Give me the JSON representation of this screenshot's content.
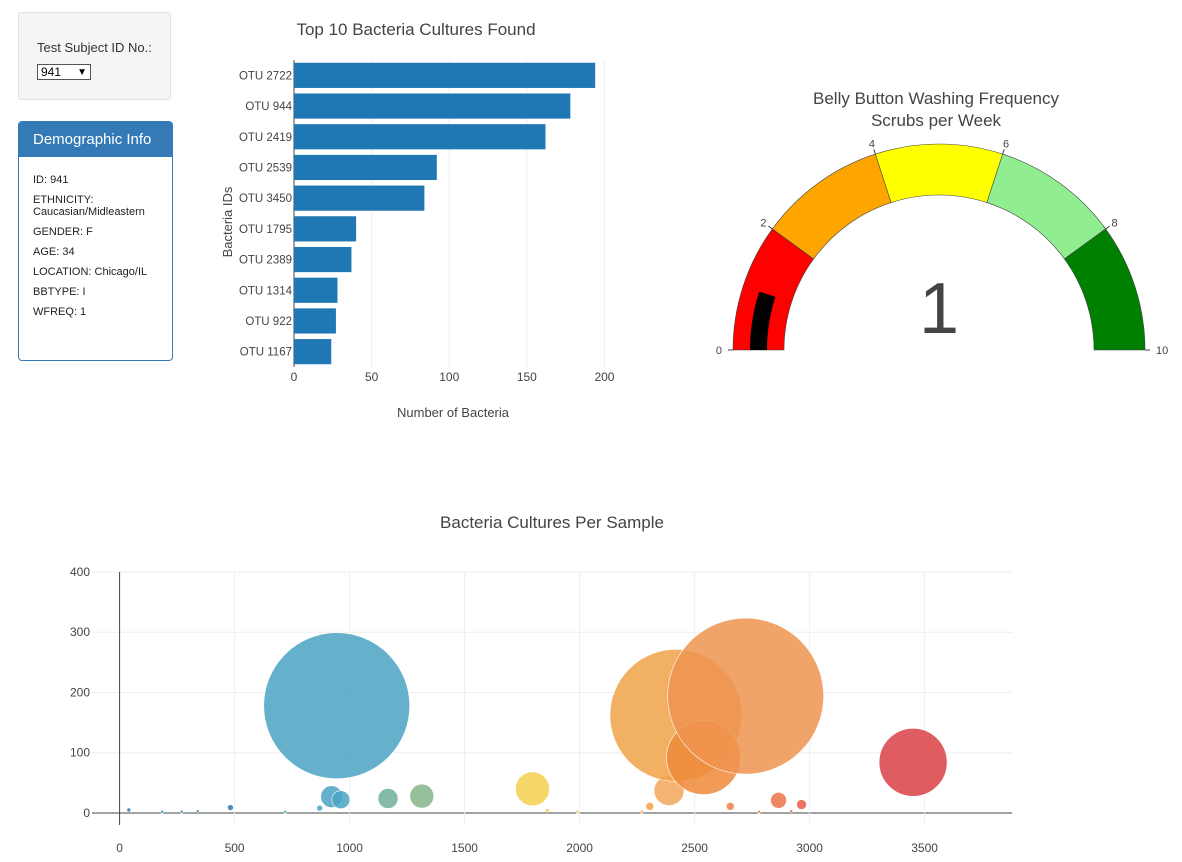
{
  "selector": {
    "label": "Test Subject ID No.:",
    "selected": "941"
  },
  "demographics": {
    "title": "Demographic Info",
    "lines": [
      "ID: 941",
      "ETHNICITY: Caucasian/Midleastern",
      "GENDER: F",
      "AGE: 34",
      "LOCATION: Chicago/IL",
      "BBTYPE: I",
      "WFREQ: 1"
    ]
  },
  "colors": {
    "bar": "#1f77b4",
    "panel": "#337ab7",
    "needle": "#000000"
  },
  "chart_data": [
    {
      "type": "bar",
      "orientation": "horizontal",
      "title": "Top 10 Bacteria Cultures Found",
      "xlabel": "Number of Bacteria",
      "ylabel": "Bacteria IDs",
      "categories": [
        "OTU 2722",
        "OTU 944",
        "OTU 2419",
        "OTU 2539",
        "OTU 3450",
        "OTU 1795",
        "OTU 2389",
        "OTU 1314",
        "OTU 922",
        "OTU 1167"
      ],
      "values": [
        194,
        178,
        162,
        92,
        84,
        40,
        37,
        28,
        27,
        24
      ],
      "xlim": [
        0,
        210
      ],
      "xticks": [
        0,
        50,
        100,
        150,
        200
      ]
    },
    {
      "type": "gauge",
      "title": "Belly Button Washing Frequency",
      "subtitle": "Scrubs per Week",
      "value": 1,
      "range": [
        0,
        10
      ],
      "ticks": [
        0,
        2,
        4,
        6,
        8,
        10
      ],
      "steps": [
        {
          "range": [
            0,
            2
          ],
          "color": "#ff0000"
        },
        {
          "range": [
            2,
            4
          ],
          "color": "#ffa500"
        },
        {
          "range": [
            4,
            6
          ],
          "color": "#ffff00"
        },
        {
          "range": [
            6,
            8
          ],
          "color": "#90ee90"
        },
        {
          "range": [
            8,
            10
          ],
          "color": "#008000"
        }
      ]
    },
    {
      "type": "scatter",
      "title": "Bacteria Cultures Per Sample",
      "xlim": [
        -120,
        3880
      ],
      "ylim": [
        -20,
        400
      ],
      "xticks": [
        0,
        500,
        1000,
        1500,
        2000,
        2500,
        3000,
        3500
      ],
      "yticks": [
        0,
        100,
        200,
        300,
        400
      ],
      "points": [
        {
          "x": 944,
          "y": 178,
          "r": 73,
          "color": "#4aa3c3"
        },
        {
          "x": 922,
          "y": 27,
          "r": 11,
          "color": "#4aa3c3"
        },
        {
          "x": 962,
          "y": 22,
          "r": 9,
          "color": "#4aa3c3"
        },
        {
          "x": 1167,
          "y": 24,
          "r": 10,
          "color": "#6fb09a"
        },
        {
          "x": 1314,
          "y": 28,
          "r": 12,
          "color": "#86b48a"
        },
        {
          "x": 1795,
          "y": 40,
          "r": 17,
          "color": "#f2d04e"
        },
        {
          "x": 2389,
          "y": 37,
          "r": 15,
          "color": "#f2a45a"
        },
        {
          "x": 2419,
          "y": 162,
          "r": 66,
          "color": "#f0a248"
        },
        {
          "x": 2539,
          "y": 92,
          "r": 37,
          "color": "#ee8a3a"
        },
        {
          "x": 2722,
          "y": 194,
          "r": 78,
          "color": "#ee9450"
        },
        {
          "x": 2865,
          "y": 21,
          "r": 8,
          "color": "#ec7448"
        },
        {
          "x": 2965,
          "y": 14,
          "r": 5,
          "color": "#ea5c48"
        },
        {
          "x": 3450,
          "y": 84,
          "r": 34,
          "color": "#d94144"
        },
        {
          "x": 2305,
          "y": 11,
          "r": 4,
          "color": "#f2a040"
        },
        {
          "x": 2655,
          "y": 11,
          "r": 4,
          "color": "#ee8048"
        },
        {
          "x": 482,
          "y": 9,
          "r": 3,
          "color": "#2e78b0"
        },
        {
          "x": 870,
          "y": 8,
          "r": 3,
          "color": "#4aa3c3"
        },
        {
          "x": 40,
          "y": 5,
          "r": 2,
          "color": "#1f77b4"
        },
        {
          "x": 185,
          "y": 2,
          "r": 1.5,
          "color": "#2a80b0"
        },
        {
          "x": 270,
          "y": 2,
          "r": 1.5,
          "color": "#2a80b0"
        },
        {
          "x": 340,
          "y": 3,
          "r": 1.5,
          "color": "#2a80b0"
        },
        {
          "x": 720,
          "y": 2,
          "r": 1.5,
          "color": "#4aa3c3"
        },
        {
          "x": 1860,
          "y": 4,
          "r": 2,
          "color": "#f2d04e"
        },
        {
          "x": 1990,
          "y": 2,
          "r": 1.5,
          "color": "#f2c04e"
        },
        {
          "x": 2270,
          "y": 2,
          "r": 1.5,
          "color": "#f2a040"
        },
        {
          "x": 2780,
          "y": 2,
          "r": 1.5,
          "color": "#ee8048"
        },
        {
          "x": 2920,
          "y": 3,
          "r": 1.5,
          "color": "#ea6048"
        }
      ]
    }
  ]
}
